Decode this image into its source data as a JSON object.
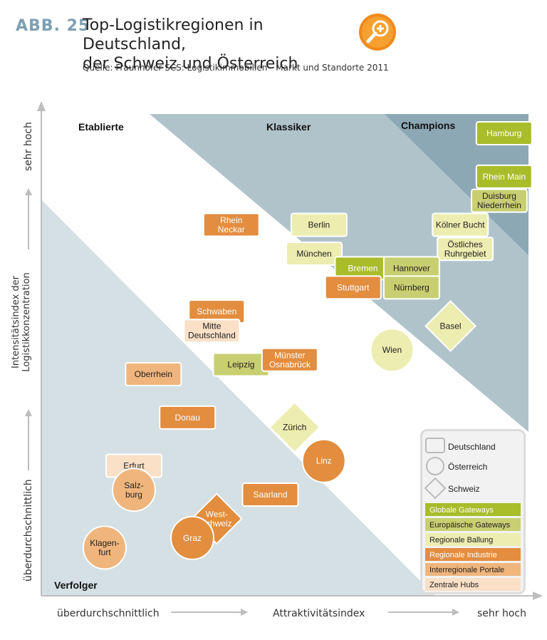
{
  "header": {
    "abb": "ABB. 25",
    "title_line1": "Top-Logistikregionen in Deutschland,",
    "title_line2": "der Schweiz und Österreich",
    "source": "Quelle: Fraunhofer SCS: Logistikimmobilien - Markt und Standorte 2011",
    "zoom_icon": "zoom-in-icon"
  },
  "chart_data": {
    "type": "scatter",
    "xlabel_left": "überdurchschnittlich",
    "xlabel_center": "Attraktivitätsindex",
    "xlabel_right": "sehr hoch",
    "ylabel_top": "sehr hoch",
    "ylabel_center": "Intensitätsindex der Logistikkonzentration",
    "ylabel_bottom": "überdurchschnittlich",
    "zones": [
      {
        "name": "Etablierte",
        "color": "#ffffff"
      },
      {
        "name": "Klassiker",
        "color": "#b0c3cb"
      },
      {
        "name": "Champions",
        "color": "#8ca8b5"
      },
      {
        "name": "Verfolger",
        "color": "#d5e0e4"
      }
    ],
    "categories": [
      {
        "name": "Globale Gateways",
        "color": "#a9bc2a",
        "text": "#ffffff"
      },
      {
        "name": "Europäische Gateways",
        "color": "#c8cf71",
        "text": "#222222"
      },
      {
        "name": "Regionale Ballung",
        "color": "#ecedb0",
        "text": "#222222"
      },
      {
        "name": "Regionale Industrie",
        "color": "#e38d3f",
        "text": "#ffffff"
      },
      {
        "name": "Interregionale Portale",
        "color": "#f0b57c",
        "text": "#222222"
      },
      {
        "name": "Zentrale Hubs",
        "color": "#fae0c7",
        "text": "#222222"
      }
    ],
    "points": [
      {
        "label": [
          "Hamburg"
        ],
        "country": "Deutschland",
        "category": 0,
        "x": 0.95,
        "y": 0.96
      },
      {
        "label": [
          "Rhein Main"
        ],
        "country": "Deutschland",
        "category": 0,
        "x": 0.95,
        "y": 0.87
      },
      {
        "label": [
          "Duisburg",
          "Niederrhein"
        ],
        "country": "Deutschland",
        "category": 1,
        "x": 0.94,
        "y": 0.82
      },
      {
        "label": [
          "Kölner Bucht"
        ],
        "country": "Deutschland",
        "category": 2,
        "x": 0.86,
        "y": 0.77
      },
      {
        "label": [
          "Östliches",
          "Ruhrgebiet"
        ],
        "country": "Deutschland",
        "category": 2,
        "x": 0.87,
        "y": 0.72
      },
      {
        "label": [
          "Berlin"
        ],
        "country": "Deutschland",
        "category": 2,
        "x": 0.57,
        "y": 0.77
      },
      {
        "label": [
          "München"
        ],
        "country": "Deutschland",
        "category": 2,
        "x": 0.56,
        "y": 0.71
      },
      {
        "label": [
          "Bremen"
        ],
        "country": "Deutschland",
        "category": 0,
        "x": 0.66,
        "y": 0.68
      },
      {
        "label": [
          "Hannover"
        ],
        "country": "Deutschland",
        "category": 1,
        "x": 0.76,
        "y": 0.68
      },
      {
        "label": [
          "Stuttgart"
        ],
        "country": "Deutschland",
        "category": 3,
        "x": 0.64,
        "y": 0.64
      },
      {
        "label": [
          "Nürnberg"
        ],
        "country": "Deutschland",
        "category": 1,
        "x": 0.76,
        "y": 0.64
      },
      {
        "label": [
          "Rhein",
          "Neckar"
        ],
        "country": "Deutschland",
        "category": 3,
        "x": 0.39,
        "y": 0.77
      },
      {
        "label": [
          "Schwaben"
        ],
        "country": "Deutschland",
        "category": 3,
        "x": 0.36,
        "y": 0.59
      },
      {
        "label": [
          "Mitte",
          "Deutschland"
        ],
        "country": "Deutschland",
        "category": 5,
        "x": 0.35,
        "y": 0.55
      },
      {
        "label": [
          "Leipzig"
        ],
        "country": "Deutschland",
        "category": 1,
        "x": 0.41,
        "y": 0.48
      },
      {
        "label": [
          "Münster",
          "Osnabrück"
        ],
        "country": "Deutschland",
        "category": 3,
        "x": 0.51,
        "y": 0.49
      },
      {
        "label": [
          "Oberrhein"
        ],
        "country": "Deutschland",
        "category": 4,
        "x": 0.23,
        "y": 0.46
      },
      {
        "label": [
          "Donau"
        ],
        "country": "Deutschland",
        "category": 3,
        "x": 0.3,
        "y": 0.37
      },
      {
        "label": [
          "Erfurt"
        ],
        "country": "Deutschland",
        "category": 5,
        "x": 0.19,
        "y": 0.27
      },
      {
        "label": [
          "Saarland"
        ],
        "country": "Deutschland",
        "category": 3,
        "x": 0.47,
        "y": 0.21
      },
      {
        "label": [
          "Basel"
        ],
        "country": "Schweiz",
        "category": 2,
        "x": 0.84,
        "y": 0.56
      },
      {
        "label": [
          "Zürich"
        ],
        "country": "Schweiz",
        "category": 2,
        "x": 0.52,
        "y": 0.35
      },
      {
        "label": [
          "West-",
          "schweiz"
        ],
        "country": "Schweiz",
        "category": 3,
        "x": 0.36,
        "y": 0.16
      },
      {
        "label": [
          "Wien"
        ],
        "country": "Österreich",
        "category": 2,
        "x": 0.72,
        "y": 0.51
      },
      {
        "label": [
          "Linz"
        ],
        "country": "Österreich",
        "category": 3,
        "x": 0.58,
        "y": 0.28
      },
      {
        "label": [
          "Salz-",
          "burg"
        ],
        "country": "Österreich",
        "category": 4,
        "x": 0.19,
        "y": 0.22
      },
      {
        "label": [
          "Graz"
        ],
        "country": "Österreich",
        "category": 3,
        "x": 0.31,
        "y": 0.12
      },
      {
        "label": [
          "Klagen-",
          "furt"
        ],
        "country": "Österreich",
        "category": 4,
        "x": 0.13,
        "y": 0.1
      }
    ]
  },
  "legend": {
    "shapes": [
      {
        "label": "Deutschland",
        "shape": "square"
      },
      {
        "label": "Österreich",
        "shape": "circle"
      },
      {
        "label": "Schweiz",
        "shape": "diamond"
      }
    ]
  }
}
